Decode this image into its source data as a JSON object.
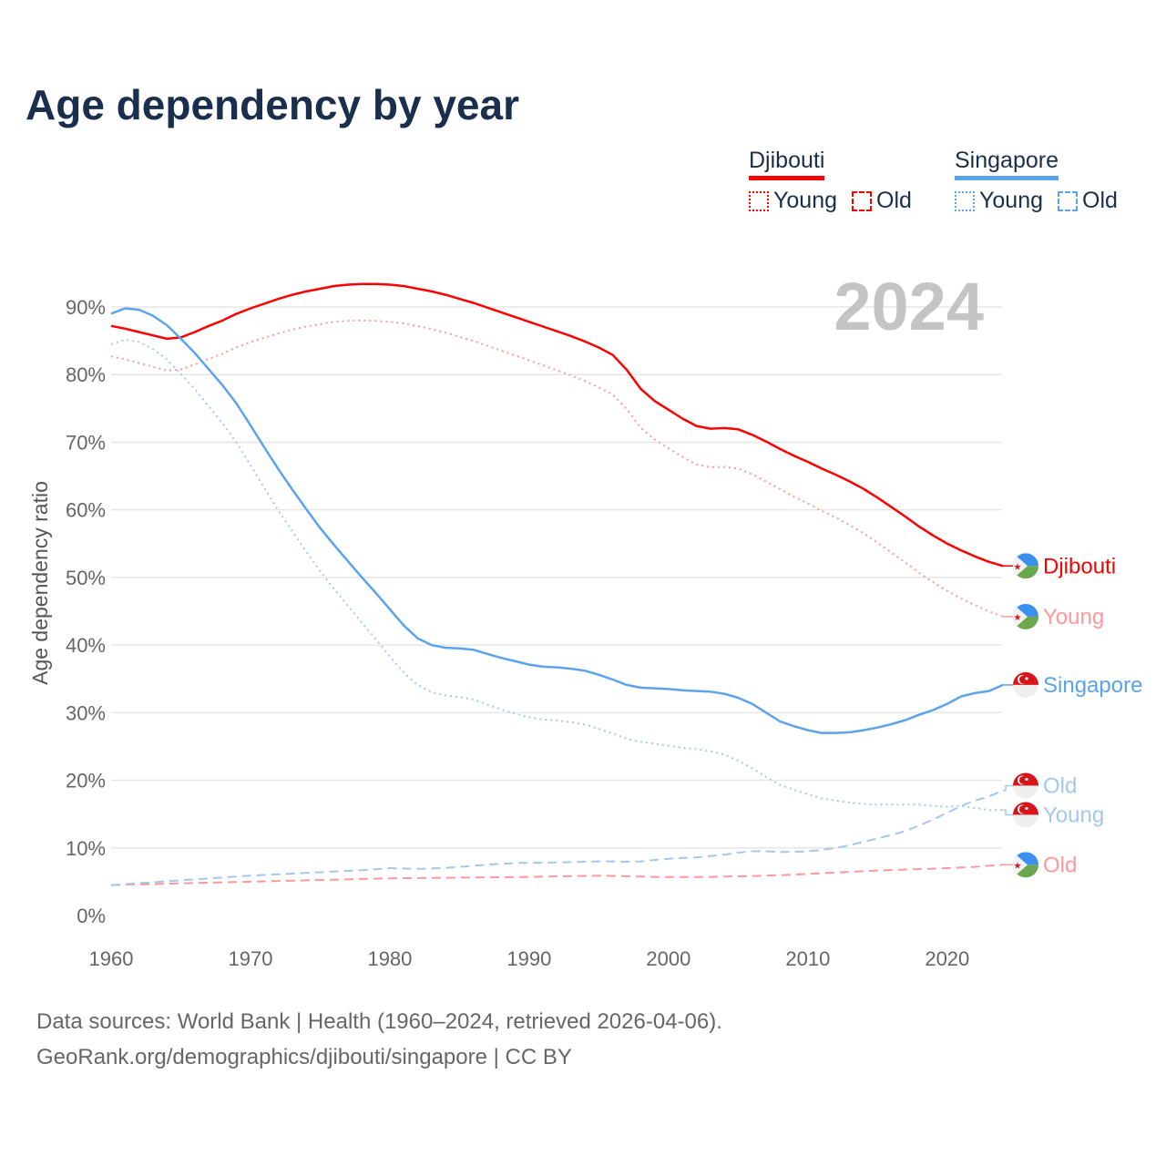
{
  "chart_data": {
    "type": "line",
    "title": "Age dependency by year",
    "ylabel": "Age dependency ratio",
    "xlabel": "",
    "xlim": [
      1960,
      2024
    ],
    "ylim": [
      0,
      90
    ],
    "y_ticks": [
      "0%",
      "10%",
      "20%",
      "30%",
      "40%",
      "50%",
      "60%",
      "70%",
      "80%",
      "90%"
    ],
    "x_ticks": [
      "1960",
      "1970",
      "1980",
      "1990",
      "2000",
      "2010",
      "2020"
    ],
    "grid": true,
    "current_year_label": "2024",
    "legend_position": "top-right",
    "legend": [
      {
        "country": "Djibouti",
        "color": "#ff0000",
        "items": [
          "Young",
          "Old"
        ]
      },
      {
        "country": "Singapore",
        "color": "#5ba3ec",
        "items": [
          "Young",
          "Old"
        ]
      }
    ],
    "x_start": 1960,
    "series": [
      {
        "name": "Djibouti",
        "end_label": "Djibouti",
        "country": "djibouti",
        "style": "solid",
        "color": "#ff0000",
        "label_color": "#ff0000",
        "values": [
          87.2,
          86.8,
          86.3,
          85.8,
          85.3,
          85.5,
          86.3,
          87.2,
          88.0,
          89.0,
          89.8,
          90.5,
          91.2,
          91.8,
          92.3,
          92.7,
          93.1,
          93.3,
          93.4,
          93.4,
          93.3,
          93.1,
          92.7,
          92.3,
          91.8,
          91.2,
          90.6,
          89.9,
          89.2,
          88.5,
          87.8,
          87.1,
          86.4,
          85.7,
          84.9,
          84.0,
          82.9,
          80.7,
          77.9,
          76.1,
          74.8,
          73.5,
          72.4,
          72.0,
          72.1,
          71.9,
          71.1,
          70.1,
          69.0,
          68.0,
          67.1,
          66.1,
          65.2,
          64.2,
          63.1,
          61.8,
          60.4,
          59.0,
          57.5,
          56.2,
          55.0,
          54.0,
          53.1,
          52.3,
          51.7
        ]
      },
      {
        "name": "Djibouti Young",
        "end_label": "Young",
        "country": "djibouti",
        "style": "dotted",
        "color": "#ff9999",
        "label_color": "#ff9999",
        "values": [
          82.7,
          82.25,
          81.7,
          81.15,
          80.6,
          80.75,
          81.5,
          82.35,
          83.1,
          84.05,
          84.8,
          85.45,
          86.1,
          86.65,
          87.1,
          87.45,
          87.8,
          87.95,
          88.0,
          87.95,
          87.8,
          87.58,
          87.16,
          86.74,
          86.22,
          85.6,
          84.98,
          84.26,
          83.54,
          82.82,
          82.1,
          81.36,
          80.62,
          79.88,
          79.04,
          78.1,
          77.04,
          74.9,
          72.15,
          70.4,
          69.1,
          67.82,
          66.72,
          66.3,
          66.35,
          66.1,
          65.25,
          64.2,
          63.05,
          61.95,
          60.95,
          59.85,
          58.85,
          57.75,
          56.55,
          55.15,
          53.68,
          52.2,
          50.64,
          49.27,
          48.0,
          46.9,
          45.9,
          44.95,
          44.2
        ]
      },
      {
        "name": "Djibouti Old",
        "end_label": "Old",
        "country": "djibouti",
        "style": "dashed",
        "color": "#ff9999",
        "label_color": "#ff9999",
        "values": [
          4.5,
          4.55,
          4.6,
          4.65,
          4.7,
          4.75,
          4.8,
          4.85,
          4.9,
          4.95,
          5.0,
          5.05,
          5.1,
          5.15,
          5.2,
          5.25,
          5.3,
          5.35,
          5.4,
          5.45,
          5.5,
          5.52,
          5.54,
          5.56,
          5.58,
          5.6,
          5.62,
          5.64,
          5.66,
          5.68,
          5.7,
          5.74,
          5.78,
          5.82,
          5.86,
          5.9,
          5.86,
          5.8,
          5.75,
          5.7,
          5.7,
          5.68,
          5.68,
          5.7,
          5.75,
          5.8,
          5.85,
          5.9,
          5.95,
          6.05,
          6.15,
          6.25,
          6.35,
          6.45,
          6.55,
          6.65,
          6.72,
          6.8,
          6.86,
          6.93,
          7.0,
          7.1,
          7.2,
          7.35,
          7.5
        ]
      },
      {
        "name": "Singapore",
        "end_label": "Singapore",
        "country": "singapore",
        "style": "solid",
        "color": "#5ba3ec",
        "label_color": "#5ba3ec",
        "values": [
          89.0,
          89.8,
          89.6,
          88.7,
          87.3,
          85.3,
          83.2,
          80.8,
          78.4,
          75.7,
          72.5,
          69.2,
          66.0,
          63.0,
          60.1,
          57.3,
          54.8,
          52.4,
          50.0,
          47.7,
          45.3,
          42.9,
          41.0,
          40.0,
          39.6,
          39.5,
          39.3,
          38.7,
          38.1,
          37.6,
          37.1,
          36.8,
          36.7,
          36.5,
          36.2,
          35.6,
          34.9,
          34.1,
          33.7,
          33.6,
          33.5,
          33.3,
          33.2,
          33.1,
          32.8,
          32.2,
          31.3,
          30.0,
          28.7,
          28.0,
          27.4,
          27.0,
          27.0,
          27.1,
          27.4,
          27.8,
          28.3,
          28.9,
          29.7,
          30.4,
          31.3,
          32.4,
          32.9,
          33.2,
          34.1
        ]
      },
      {
        "name": "Singapore Young",
        "end_label": "Young",
        "country": "singapore",
        "style": "dotted",
        "color": "#a3c8f0",
        "label_color": "#a3c8f0",
        "values": [
          84.5,
          85.16,
          84.82,
          83.78,
          82.24,
          80.1,
          77.86,
          75.32,
          72.78,
          69.94,
          66.6,
          63.2,
          59.9,
          56.8,
          53.8,
          50.9,
          48.3,
          45.8,
          43.3,
          40.85,
          38.3,
          35.95,
          34.1,
          33.05,
          32.55,
          32.3,
          31.95,
          31.2,
          30.45,
          29.85,
          29.3,
          29.0,
          28.85,
          28.6,
          28.25,
          27.6,
          26.9,
          26.15,
          25.7,
          25.4,
          25.1,
          24.8,
          24.6,
          24.3,
          23.8,
          22.9,
          21.8,
          20.5,
          19.3,
          18.6,
          17.9,
          17.3,
          17.0,
          16.7,
          16.5,
          16.4,
          16.4,
          16.4,
          16.4,
          16.2,
          16.1,
          16.2,
          15.9,
          15.6,
          15.6
        ]
      },
      {
        "name": "Singapore Old",
        "end_label": "Old",
        "country": "singapore",
        "style": "dashed",
        "color": "#a3c8f0",
        "label_color": "#a3c8f0",
        "values": [
          4.5,
          4.64,
          4.78,
          4.92,
          5.06,
          5.2,
          5.34,
          5.48,
          5.62,
          5.76,
          5.9,
          6.0,
          6.1,
          6.2,
          6.3,
          6.4,
          6.5,
          6.6,
          6.7,
          6.85,
          7.0,
          6.95,
          6.9,
          6.95,
          7.05,
          7.2,
          7.35,
          7.5,
          7.65,
          7.75,
          7.8,
          7.8,
          7.85,
          7.9,
          7.95,
          8.0,
          8.0,
          7.95,
          8.0,
          8.2,
          8.4,
          8.5,
          8.6,
          8.8,
          9.0,
          9.3,
          9.5,
          9.5,
          9.4,
          9.4,
          9.5,
          9.7,
          10.0,
          10.4,
          10.9,
          11.4,
          11.9,
          12.5,
          13.3,
          14.2,
          15.2,
          16.2,
          17.0,
          17.6,
          18.5
        ]
      }
    ]
  },
  "footer": {
    "line1": "Data sources: World Bank | Health (1960–2024, retrieved 2026-04-06).",
    "line2": "GeoRank.org/demographics/djibouti/singapore | CC BY"
  }
}
